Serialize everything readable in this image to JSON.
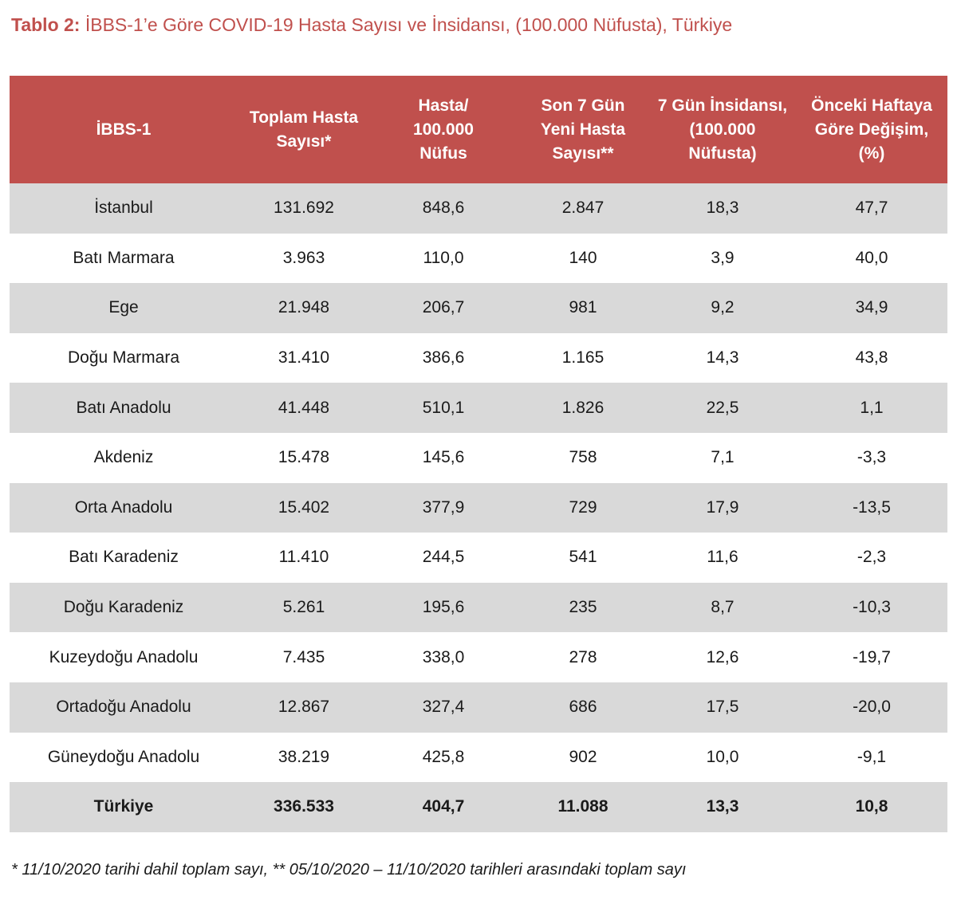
{
  "title": {
    "prefix": "Tablo 2:",
    "text": "İBBS-1’e Göre COVID-19 Hasta Sayısı ve İnsidansı, (100.000 Nüfusta), Türkiye"
  },
  "table": {
    "header_color": "#c0504d",
    "stripe_color": "#d9d9d9",
    "headers": [
      "İBBS-1",
      "Toplam Hasta\nSayısı*",
      "Hasta/\n100.000\nNüfus",
      "Son 7 Gün\nYeni Hasta\nSayısı**",
      "7 Gün İnsidansı,\n(100.000\nNüfusta)",
      "Önceki Haftaya\nGöre Değişim,\n(%)"
    ],
    "rows": [
      [
        "İstanbul",
        "131.692",
        "848,6",
        "2.847",
        "18,3",
        "47,7"
      ],
      [
        "Batı Marmara",
        "3.963",
        "110,0",
        "140",
        "3,9",
        "40,0"
      ],
      [
        "Ege",
        "21.948",
        "206,7",
        "981",
        "9,2",
        "34,9"
      ],
      [
        "Doğu Marmara",
        "31.410",
        "386,6",
        "1.165",
        "14,3",
        "43,8"
      ],
      [
        "Batı Anadolu",
        "41.448",
        "510,1",
        "1.826",
        "22,5",
        "1,1"
      ],
      [
        "Akdeniz",
        "15.478",
        "145,6",
        "758",
        "7,1",
        "-3,3"
      ],
      [
        "Orta Anadolu",
        "15.402",
        "377,9",
        "729",
        "17,9",
        "-13,5"
      ],
      [
        "Batı Karadeniz",
        "11.410",
        "244,5",
        "541",
        "11,6",
        "-2,3"
      ],
      [
        "Doğu Karadeniz",
        "5.261",
        "195,6",
        "235",
        "8,7",
        "-10,3"
      ],
      [
        "Kuzeydoğu Anadolu",
        "7.435",
        "338,0",
        "278",
        "12,6",
        "-19,7"
      ],
      [
        "Ortadoğu Anadolu",
        "12.867",
        "327,4",
        "686",
        "17,5",
        "-20,0"
      ],
      [
        "Güneydoğu Anadolu",
        "38.219",
        "425,8",
        "902",
        "10,0",
        "-9,1"
      ],
      [
        "Türkiye",
        "336.533",
        "404,7",
        "11.088",
        "13,3",
        "10,8"
      ]
    ]
  },
  "footnote": "* 11/10/2020 tarihi dahil toplam sayı, ** 05/10/2020 – 11/10/2020 tarihleri arasındaki toplam sayı"
}
